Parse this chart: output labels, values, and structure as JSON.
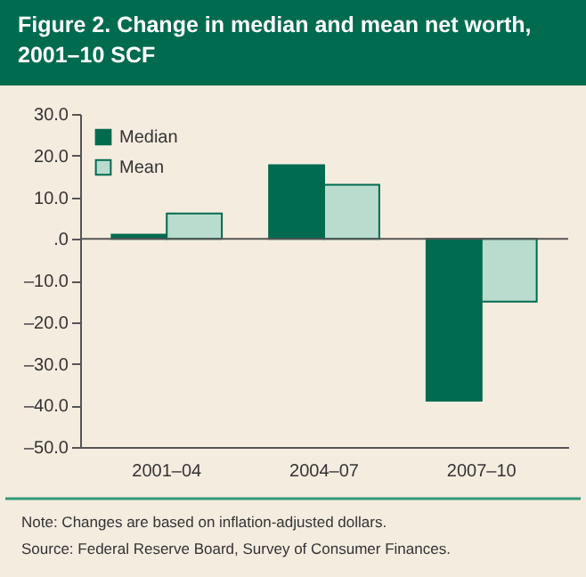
{
  "chart_data": {
    "type": "bar",
    "title": "Figure 2. Change in median and mean net worth, 2001–10 SCF",
    "categories": [
      "2001–04",
      "2004–07",
      "2007–10"
    ],
    "series": [
      {
        "name": "Median",
        "color": "#006b4f",
        "values": [
          1.0,
          17.7,
          -38.9
        ]
      },
      {
        "name": "Mean",
        "color": "#b9dccf",
        "values": [
          6.1,
          13.0,
          -15.1
        ]
      }
    ],
    "ylim": [
      -50,
      30
    ],
    "yticks": [
      {
        "value": 30,
        "label": "30.0"
      },
      {
        "value": 20,
        "label": "20.0"
      },
      {
        "value": 10,
        "label": "10.0"
      },
      {
        "value": 0,
        "label": ".0"
      },
      {
        "value": -10,
        "label": "–10.0"
      },
      {
        "value": -20,
        "label": "–20.0"
      },
      {
        "value": -30,
        "label": "–30.0"
      },
      {
        "value": -40,
        "label": "–40.0"
      },
      {
        "value": -50,
        "label": "–50.0"
      }
    ],
    "ref_lines": [
      {
        "axis": "y",
        "value": 0,
        "color": "#555555"
      }
    ],
    "legend": "top left",
    "annotations": [
      "Note: Changes are based on inflation-adjusted dollars.",
      "Source: Federal Reserve Board, Survey of Consumer Finances."
    ]
  }
}
